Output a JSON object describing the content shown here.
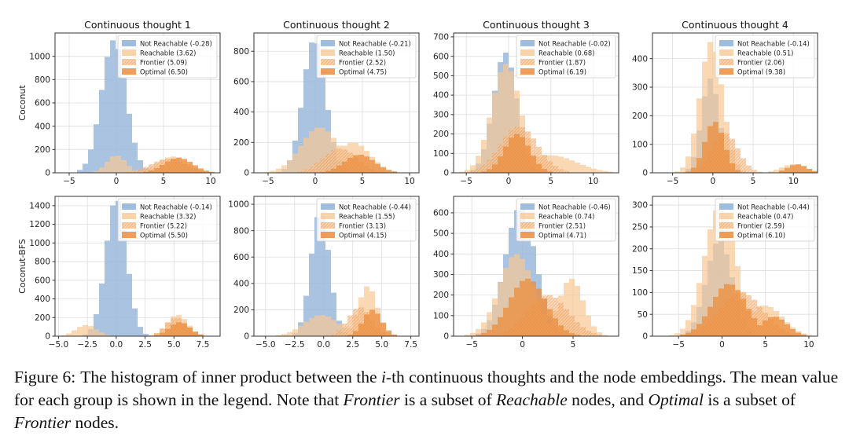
{
  "figure": {
    "row_labels": [
      "Coconut",
      "Coconut-BFS"
    ],
    "legend_names": [
      "Not Reachable",
      "Reachable",
      "Frontier",
      "Optimal"
    ],
    "colors": {
      "not_reachable": "#9ab9dc",
      "reachable": "#f8c894",
      "frontier": "#f0a868",
      "optimal": "#ec8c3c",
      "grid": "#dddddd",
      "axis": "#333333"
    }
  },
  "chart_data": [
    {
      "type": "bar",
      "row": 0,
      "col": 0,
      "title": "Continuous thought 1",
      "xlim": [
        -6.5,
        11
      ],
      "ylim": [
        0,
        1200
      ],
      "xticks": [
        -5,
        0,
        5,
        10
      ],
      "yticks": [
        0,
        200,
        400,
        600,
        800,
        1000
      ],
      "grid": true,
      "legend": "top-right",
      "groups": [
        {
          "name": "Not Reachable",
          "mean": "-0.28",
          "mu": -0.28,
          "sigma": 1.3,
          "peak": 1140
        },
        {
          "name": "Reachable",
          "mean": "3.62",
          "mu": 0,
          "sigma": 1.0,
          "peak": 150,
          "mu2": 6.0,
          "sigma2": 1.6,
          "peak2": 140
        },
        {
          "name": "Frontier",
          "mean": "5.09",
          "mu": 5.5,
          "sigma": 1.8,
          "peak": 120
        },
        {
          "name": "Optimal",
          "mean": "6.50",
          "mu": 6.6,
          "sigma": 1.5,
          "peak": 130
        }
      ]
    },
    {
      "type": "bar",
      "row": 0,
      "col": 1,
      "title": "Continuous thought 2",
      "xlim": [
        -6.5,
        11
      ],
      "ylim": [
        0,
        920
      ],
      "xticks": [
        -5,
        0,
        5,
        10
      ],
      "yticks": [
        0,
        200,
        400,
        600,
        800
      ],
      "grid": true,
      "legend": "top-right",
      "groups": [
        {
          "name": "Not Reachable",
          "mean": "-0.21",
          "mu": -0.1,
          "sigma": 1.2,
          "peak": 880
        },
        {
          "name": "Reachable",
          "mean": "1.50",
          "mu": 0.5,
          "sigma": 2.0,
          "peak": 300,
          "mu2": 4.0,
          "sigma2": 1.8,
          "peak2": 200
        },
        {
          "name": "Frontier",
          "mean": "2.52",
          "mu": 2.6,
          "sigma": 1.8,
          "peak": 160
        },
        {
          "name": "Optimal",
          "mean": "4.75",
          "mu": 4.7,
          "sigma": 1.6,
          "peak": 120
        }
      ]
    },
    {
      "type": "bar",
      "row": 0,
      "col": 2,
      "title": "Continuous thought 3",
      "xlim": [
        -6.5,
        13
      ],
      "ylim": [
        0,
        720
      ],
      "xticks": [
        -5,
        0,
        5,
        10
      ],
      "yticks": [
        0,
        100,
        200,
        300,
        400,
        500,
        600,
        700
      ],
      "grid": true,
      "legend": "top-right",
      "groups": [
        {
          "name": "Not Reachable",
          "mean": "-0.02",
          "mu": -0.4,
          "sigma": 1.4,
          "peak": 620
        },
        {
          "name": "Reachable",
          "mean": "0.68",
          "mu": -0.3,
          "sigma": 1.7,
          "peak": 560,
          "mu2": 5.0,
          "sigma2": 3.0,
          "peak2": 90
        },
        {
          "name": "Frontier",
          "mean": "1.87",
          "mu": 1.2,
          "sigma": 2.2,
          "peak": 240
        },
        {
          "name": "Optimal",
          "mean": "6.19",
          "mu": 1.0,
          "sigma": 1.5,
          "peak": 200
        }
      ]
    },
    {
      "type": "bar",
      "row": 0,
      "col": 3,
      "title": "Continuous thought 4",
      "xlim": [
        -7.5,
        13
      ],
      "ylim": [
        0,
        490
      ],
      "xticks": [
        -5,
        0,
        5,
        10
      ],
      "yticks": [
        0,
        100,
        200,
        300,
        400
      ],
      "grid": true,
      "legend": "top-right",
      "groups": [
        {
          "name": "Not Reachable",
          "mean": "-0.14",
          "mu": -0.3,
          "sigma": 1.1,
          "peak": 330
        },
        {
          "name": "Reachable",
          "mean": "0.51",
          "mu": -0.2,
          "sigma": 1.4,
          "peak": 460,
          "mu2": 10.0,
          "sigma2": 1.5,
          "peak2": 30
        },
        {
          "name": "Frontier",
          "mean": "2.06",
          "mu": 1.5,
          "sigma": 1.6,
          "peak": 140
        },
        {
          "name": "Optimal",
          "mean": "9.38",
          "mu": 0.2,
          "sigma": 1.2,
          "peak": 180,
          "mu2": 10.5,
          "sigma2": 1.2,
          "peak2": 30
        }
      ]
    },
    {
      "type": "bar",
      "row": 1,
      "col": 0,
      "title": "",
      "xlim": [
        -5.3,
        9
      ],
      "ylim": [
        0,
        1500
      ],
      "xticks": [
        -5,
        -2.5,
        0,
        2.5,
        5,
        7.5
      ],
      "xticklabels": [
        "−5.0",
        "−2.5",
        "0.0",
        "2.5",
        "5.0",
        "7.5"
      ],
      "yticks": [
        0,
        200,
        400,
        600,
        800,
        1000,
        1200,
        1400
      ],
      "grid": true,
      "legend": "top-right",
      "groups": [
        {
          "name": "Not Reachable",
          "mean": "-0.14",
          "mu": 0.0,
          "sigma": 0.9,
          "peak": 1480
        },
        {
          "name": "Reachable",
          "mean": "3.32",
          "mu": -2.6,
          "sigma": 0.9,
          "peak": 120,
          "mu2": 5.3,
          "sigma2": 0.9,
          "peak2": 230
        },
        {
          "name": "Frontier",
          "mean": "5.22",
          "mu": 5.2,
          "sigma": 0.9,
          "peak": 200
        },
        {
          "name": "Optimal",
          "mean": "5.50",
          "mu": 5.5,
          "sigma": 0.9,
          "peak": 150
        }
      ]
    },
    {
      "type": "bar",
      "row": 1,
      "col": 1,
      "title": "",
      "xlim": [
        -6.0,
        8.2
      ],
      "ylim": [
        0,
        1060
      ],
      "xticks": [
        -5,
        -2.5,
        0,
        2.5,
        5,
        7.5
      ],
      "xticklabels": [
        "−5.0",
        "−2.5",
        "0.0",
        "2.5",
        "5.0",
        "7.5"
      ],
      "yticks": [
        0,
        200,
        400,
        600,
        800,
        1000
      ],
      "grid": true,
      "legend": "top-right",
      "groups": [
        {
          "name": "Not Reachable",
          "mean": "-0.44",
          "mu": -0.3,
          "sigma": 0.8,
          "peak": 950
        },
        {
          "name": "Reachable",
          "mean": "1.55",
          "mu": -0.2,
          "sigma": 1.5,
          "peak": 160,
          "mu2": 3.8,
          "sigma2": 0.8,
          "peak2": 380
        },
        {
          "name": "Frontier",
          "mean": "3.13",
          "mu": 3.1,
          "sigma": 1.0,
          "peak": 220
        },
        {
          "name": "Optimal",
          "mean": "4.15",
          "mu": 4.2,
          "sigma": 0.8,
          "peak": 200
        }
      ]
    },
    {
      "type": "bar",
      "row": 1,
      "col": 2,
      "title": "",
      "xlim": [
        -6.8,
        9.5
      ],
      "ylim": [
        0,
        680
      ],
      "xticks": [
        -5,
        0,
        5
      ],
      "yticks": [
        0,
        100,
        200,
        300,
        400,
        500,
        600
      ],
      "grid": true,
      "legend": "top-right",
      "groups": [
        {
          "name": "Not Reachable",
          "mean": "-0.46",
          "mu": -0.2,
          "sigma": 1.5,
          "peak": 630
        },
        {
          "name": "Reachable",
          "mean": "0.74",
          "mu": -0.6,
          "sigma": 1.7,
          "peak": 400,
          "mu2": 4.8,
          "sigma2": 1.2,
          "peak2": 280
        },
        {
          "name": "Frontier",
          "mean": "2.51",
          "mu": 2.5,
          "sigma": 2.0,
          "peak": 200
        },
        {
          "name": "Optimal",
          "mean": "4.71",
          "mu": 0.5,
          "sigma": 1.8,
          "peak": 280
        }
      ]
    },
    {
      "type": "bar",
      "row": 1,
      "col": 3,
      "title": "",
      "xlim": [
        -8.0,
        11
      ],
      "ylim": [
        0,
        320
      ],
      "xticks": [
        -5,
        0,
        5,
        10
      ],
      "yticks": [
        0,
        50,
        100,
        150,
        200,
        250,
        300
      ],
      "grid": true,
      "legend": "top-right",
      "groups": [
        {
          "name": "Not Reachable",
          "mean": "-0.44",
          "mu": -0.3,
          "sigma": 1.5,
          "peak": 220
        },
        {
          "name": "Reachable",
          "mean": "0.47",
          "mu": -0.2,
          "sigma": 1.8,
          "peak": 300,
          "mu2": 5.0,
          "sigma2": 2.0,
          "peak2": 70
        },
        {
          "name": "Frontier",
          "mean": "2.59",
          "mu": 2.2,
          "sigma": 2.5,
          "peak": 100
        },
        {
          "name": "Optimal",
          "mean": "6.10",
          "mu": 0.8,
          "sigma": 2.0,
          "peak": 120,
          "mu2": 6.0,
          "sigma2": 1.5,
          "peak2": 45
        }
      ]
    }
  ],
  "caption": {
    "label": "Figure 6:",
    "segments": [
      {
        "text": "The histogram of inner product between the ",
        "italic": false
      },
      {
        "text": "i",
        "italic": true
      },
      {
        "text": "-th continuous thoughts and the node embeddings. The mean value for each group is shown in the legend. Note that ",
        "italic": false
      },
      {
        "text": "Frontier",
        "italic": true
      },
      {
        "text": " is a subset of ",
        "italic": false
      },
      {
        "text": "Reachable",
        "italic": true
      },
      {
        "text": " nodes, and ",
        "italic": false
      },
      {
        "text": "Optimal",
        "italic": true
      },
      {
        "text": " is a subset of ",
        "italic": false
      },
      {
        "text": "Frontier",
        "italic": true
      },
      {
        "text": " nodes.",
        "italic": false
      }
    ]
  }
}
